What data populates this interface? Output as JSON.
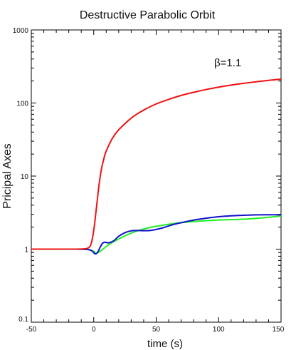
{
  "chart_data": {
    "type": "line",
    "title": "Destructive Parabolic Orbit",
    "xlabel": "time (s)",
    "ylabel": "Pricipal Axes",
    "xlim": [
      -50,
      150
    ],
    "ylim": [
      0.1,
      1000
    ],
    "y_scale": "log",
    "grid": false,
    "x_ticks": [
      "-50",
      "0",
      "50",
      "100",
      "150"
    ],
    "y_ticks": [
      "0.1",
      "1",
      "10",
      "100",
      "1000"
    ],
    "annotation": "β=1.1",
    "colors": {
      "red": "#ee1111",
      "green": "#22ee22",
      "blue": "#1111cc"
    },
    "series": [
      {
        "color": "red",
        "points": [
          [
            -50,
            1.0
          ],
          [
            -20,
            1.0
          ],
          [
            -8,
            1.01
          ],
          [
            -4,
            1.05
          ],
          [
            -2,
            1.2
          ],
          [
            0,
            1.8
          ],
          [
            2,
            3.5
          ],
          [
            4,
            7
          ],
          [
            6,
            12
          ],
          [
            8,
            17
          ],
          [
            10,
            22
          ],
          [
            15,
            33
          ],
          [
            20,
            43
          ],
          [
            30,
            62
          ],
          [
            40,
            80
          ],
          [
            50,
            97
          ],
          [
            60,
            112
          ],
          [
            70,
            127
          ],
          [
            80,
            140
          ],
          [
            90,
            153
          ],
          [
            100,
            165
          ],
          [
            110,
            176
          ],
          [
            120,
            186
          ],
          [
            130,
            195
          ],
          [
            140,
            204
          ],
          [
            150,
            212
          ]
        ]
      },
      {
        "color": "green",
        "points": [
          [
            -50,
            1.0
          ],
          [
            -20,
            1.0
          ],
          [
            -5,
            0.99
          ],
          [
            0,
            0.93
          ],
          [
            2,
            0.88
          ],
          [
            5,
            0.93
          ],
          [
            8,
            1.02
          ],
          [
            12,
            1.15
          ],
          [
            18,
            1.32
          ],
          [
            25,
            1.52
          ],
          [
            35,
            1.78
          ],
          [
            45,
            1.98
          ],
          [
            55,
            2.12
          ],
          [
            65,
            2.25
          ],
          [
            75,
            2.35
          ],
          [
            85,
            2.42
          ],
          [
            95,
            2.48
          ],
          [
            105,
            2.52
          ],
          [
            115,
            2.55
          ],
          [
            125,
            2.6
          ],
          [
            135,
            2.68
          ],
          [
            142,
            2.75
          ],
          [
            150,
            2.85
          ]
        ]
      },
      {
        "color": "blue",
        "points": [
          [
            -50,
            1.0
          ],
          [
            -20,
            1.0
          ],
          [
            -5,
            0.99
          ],
          [
            -1,
            0.93
          ],
          [
            1,
            0.86
          ],
          [
            3,
            0.9
          ],
          [
            5,
            1.05
          ],
          [
            7,
            1.2
          ],
          [
            9,
            1.24
          ],
          [
            12,
            1.22
          ],
          [
            16,
            1.3
          ],
          [
            20,
            1.5
          ],
          [
            25,
            1.68
          ],
          [
            30,
            1.78
          ],
          [
            35,
            1.8
          ],
          [
            40,
            1.79
          ],
          [
            45,
            1.8
          ],
          [
            50,
            1.86
          ],
          [
            55,
            1.95
          ],
          [
            60,
            2.08
          ],
          [
            65,
            2.2
          ],
          [
            70,
            2.3
          ],
          [
            80,
            2.5
          ],
          [
            90,
            2.65
          ],
          [
            100,
            2.78
          ],
          [
            110,
            2.86
          ],
          [
            120,
            2.91
          ],
          [
            130,
            2.95
          ],
          [
            140,
            2.96
          ],
          [
            150,
            2.95
          ]
        ]
      }
    ]
  }
}
